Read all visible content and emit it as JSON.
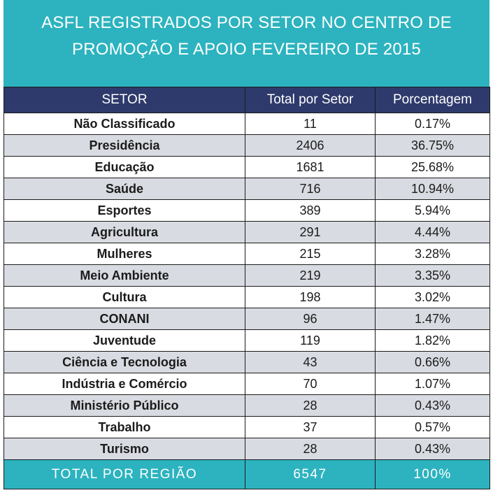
{
  "chart_data": {
    "type": "table",
    "title_lines": [
      "ASFL REGISTRADOS POR SETOR NO CENTRO DE",
      "PROMOÇÃO E APOIO FEVEREIRO DE 2015"
    ],
    "columns": [
      "SETOR",
      "Total por Setor",
      "Porcentagem"
    ],
    "rows": [
      {
        "setor": "Não Classificado",
        "total": "11",
        "pct": "0.17%"
      },
      {
        "setor": "Presidência",
        "total": "2406",
        "pct": "36.75%"
      },
      {
        "setor": "Educação",
        "total": "1681",
        "pct": "25.68%"
      },
      {
        "setor": "Saúde",
        "total": "716",
        "pct": "10.94%"
      },
      {
        "setor": "Esportes",
        "total": "389",
        "pct": "5.94%"
      },
      {
        "setor": "Agricultura",
        "total": "291",
        "pct": "4.44%"
      },
      {
        "setor": "Mulheres",
        "total": "215",
        "pct": "3.28%"
      },
      {
        "setor": "Meio Ambiente",
        "total": "219",
        "pct": "3.35%"
      },
      {
        "setor": "Cultura",
        "total": "198",
        "pct": "3.02%"
      },
      {
        "setor": "CONANI",
        "total": "96",
        "pct": "1.47%"
      },
      {
        "setor": "Juventude",
        "total": "119",
        "pct": "1.82%"
      },
      {
        "setor": "Ciência e Tecnologia",
        "total": "43",
        "pct": "0.66%"
      },
      {
        "setor": "Indústria e Comércio",
        "total": "70",
        "pct": "1.07%"
      },
      {
        "setor": "Ministério Público",
        "total": "28",
        "pct": "0.43%"
      },
      {
        "setor": "Trabalho",
        "total": "37",
        "pct": "0.57%"
      },
      {
        "setor": "Turismo",
        "total": "28",
        "pct": "0.43%"
      }
    ],
    "footer": {
      "label": "TOTAL POR REGIÃO",
      "total": "6547",
      "pct": "100%"
    }
  },
  "colors": {
    "title_bg": "#2cb3bf",
    "header_bg": "#2e3a6c",
    "stripe_bg": "#d8dbe1",
    "footer_bg": "#2cb3bf"
  }
}
